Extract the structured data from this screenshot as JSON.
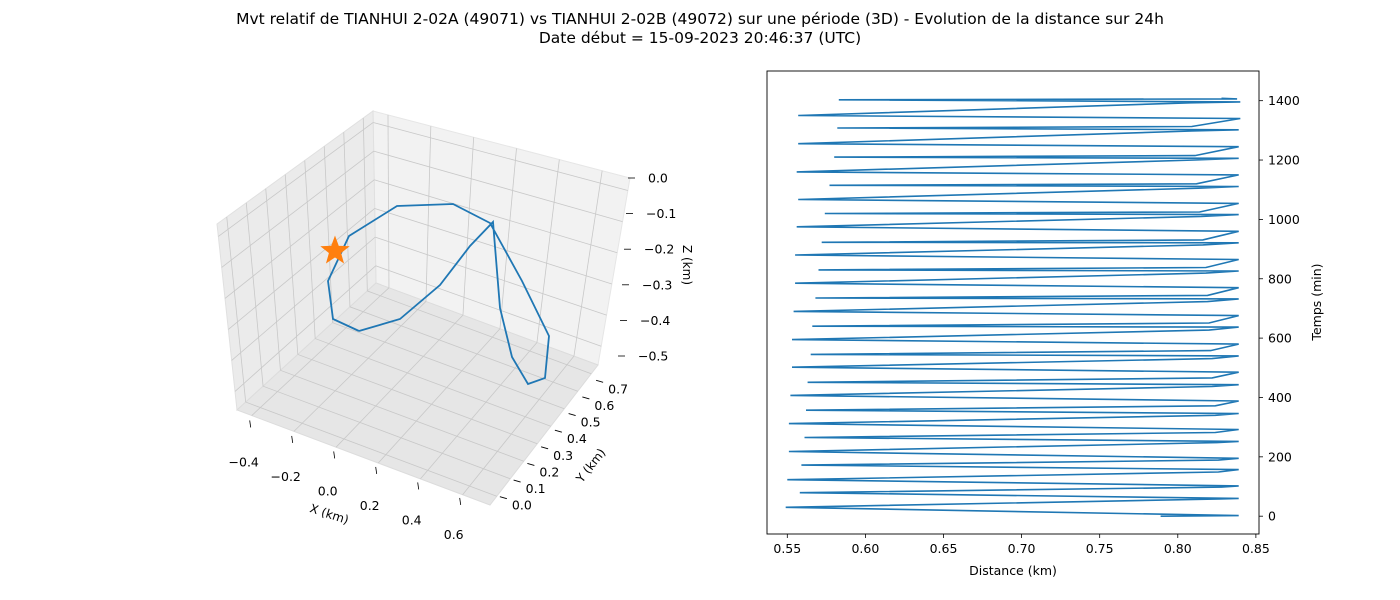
{
  "figure": {
    "title_line1": "Mvt relatif de TIANHUI 2-02A (49071) vs TIANHUI 2-02B (49072) sur une période (3D) - Evolution de la distance sur 24h",
    "title_line2": "Date début = 15-09-2023 20:46:37 (UTC)"
  },
  "chart_data": [
    {
      "type": "line3d",
      "xlabel": "X (km)",
      "ylabel": "Y (km)",
      "zlabel": "Z (km)",
      "xlim": [
        -0.5,
        0.65
      ],
      "ylim": [
        0.0,
        0.7
      ],
      "zlim": [
        -0.5,
        0.0
      ],
      "x_ticks": [
        "−0.4",
        "−0.2",
        "0.0",
        "0.2",
        "0.4",
        "0.6"
      ],
      "y_ticks": [
        "0.0",
        "0.1",
        "0.2",
        "0.3",
        "0.4",
        "0.5",
        "0.6",
        "0.7"
      ],
      "z_ticks": [
        "0.0",
        "−0.1",
        "−0.2",
        "−0.3",
        "−0.4",
        "−0.5"
      ],
      "grid": true,
      "line_color": "#1f77b4",
      "marker_color": "#ff7f0e",
      "marker_symbol": "star",
      "series_note_trajectory": [
        [
          -0.12,
          0.1,
          -0.4
        ],
        [
          -0.4,
          0.2,
          -0.42
        ],
        [
          -0.45,
          0.3,
          -0.35
        ],
        [
          -0.42,
          0.4,
          -0.2
        ],
        [
          -0.35,
          0.5,
          -0.12
        ],
        [
          -0.15,
          0.62,
          -0.08
        ],
        [
          0.05,
          0.68,
          -0.12
        ],
        [
          0.2,
          0.62,
          -0.2
        ],
        [
          0.32,
          0.5,
          -0.3
        ],
        [
          0.38,
          0.35,
          -0.42
        ],
        [
          0.36,
          0.2,
          -0.48
        ],
        [
          0.3,
          0.12,
          -0.5
        ],
        [
          0.24,
          0.2,
          -0.46
        ],
        [
          0.18,
          0.4,
          -0.35
        ],
        [
          0.14,
          0.6,
          -0.2
        ],
        [
          0.12,
          0.7,
          -0.15
        ],
        [
          0.05,
          0.55,
          -0.25
        ],
        [
          -0.02,
          0.35,
          -0.38
        ],
        [
          -0.08,
          0.18,
          -0.42
        ]
      ],
      "marker_point": [
        -0.42,
        0.42,
        -0.22
      ]
    },
    {
      "type": "line",
      "xlabel": "Distance (km)",
      "ylabel": "Temps (min)",
      "xlim": [
        0.537,
        0.852
      ],
      "ylim": [
        -60,
        1500
      ],
      "x_ticks": [
        0.55,
        0.6,
        0.65,
        0.7,
        0.75,
        0.8,
        0.85
      ],
      "x_tick_labels": [
        "0.55",
        "0.60",
        "0.65",
        "0.70",
        "0.75",
        "0.80",
        "0.85"
      ],
      "y_ticks": [
        0,
        200,
        400,
        600,
        800,
        1000,
        1200,
        1400
      ],
      "y_tick_labels": [
        "0",
        "200",
        "400",
        "600",
        "800",
        "1000",
        "1200",
        "1400"
      ],
      "y_axis_side": "right",
      "line_color": "#1f77b4",
      "points": [
        [
          0.789,
          0
        ],
        [
          0.839,
          2
        ],
        [
          0.549,
          30
        ],
        [
          0.827,
          58
        ],
        [
          0.839,
          60
        ],
        [
          0.558,
          79
        ],
        [
          0.828,
          98
        ],
        [
          0.839,
          102
        ],
        [
          0.55,
          123
        ],
        [
          0.826,
          149
        ],
        [
          0.839,
          157
        ],
        [
          0.559,
          172
        ],
        [
          0.826,
          189
        ],
        [
          0.839,
          195
        ],
        [
          0.551,
          218
        ],
        [
          0.825,
          248
        ],
        [
          0.839,
          252
        ],
        [
          0.561,
          265
        ],
        [
          0.824,
          282
        ],
        [
          0.839,
          292
        ],
        [
          0.551,
          312
        ],
        [
          0.824,
          340
        ],
        [
          0.839,
          346
        ],
        [
          0.562,
          357
        ],
        [
          0.824,
          372
        ],
        [
          0.839,
          388
        ],
        [
          0.552,
          407
        ],
        [
          0.822,
          437
        ],
        [
          0.839,
          443
        ],
        [
          0.563,
          451
        ],
        [
          0.822,
          466
        ],
        [
          0.839,
          485
        ],
        [
          0.553,
          502
        ],
        [
          0.822,
          531
        ],
        [
          0.839,
          540
        ],
        [
          0.565,
          545
        ],
        [
          0.821,
          558
        ],
        [
          0.839,
          580
        ],
        [
          0.553,
          595
        ],
        [
          0.82,
          627
        ],
        [
          0.839,
          637
        ],
        [
          0.566,
          640
        ],
        [
          0.82,
          651
        ],
        [
          0.839,
          676
        ],
        [
          0.554,
          690
        ],
        [
          0.819,
          723
        ],
        [
          0.839,
          732
        ],
        [
          0.568,
          735
        ],
        [
          0.819,
          744
        ],
        [
          0.839,
          770
        ],
        [
          0.555,
          785
        ],
        [
          0.818,
          819
        ],
        [
          0.839,
          826
        ],
        [
          0.57,
          830
        ],
        [
          0.818,
          838
        ],
        [
          0.839,
          865
        ],
        [
          0.555,
          880
        ],
        [
          0.816,
          914
        ],
        [
          0.839,
          921
        ],
        [
          0.572,
          923
        ],
        [
          0.816,
          931
        ],
        [
          0.839,
          960
        ],
        [
          0.556,
          975
        ],
        [
          0.815,
          1010
        ],
        [
          0.839,
          1016
        ],
        [
          0.574,
          1020
        ],
        [
          0.814,
          1025
        ],
        [
          0.839,
          1054
        ],
        [
          0.557,
          1067
        ],
        [
          0.813,
          1105
        ],
        [
          0.839,
          1111
        ],
        [
          0.577,
          1115
        ],
        [
          0.812,
          1120
        ],
        [
          0.839,
          1150
        ],
        [
          0.556,
          1160
        ],
        [
          0.811,
          1200
        ],
        [
          0.839,
          1206
        ],
        [
          0.58,
          1210
        ],
        [
          0.811,
          1215
        ],
        [
          0.839,
          1245
        ],
        [
          0.557,
          1255
        ],
        [
          0.809,
          1298
        ],
        [
          0.839,
          1302
        ],
        [
          0.582,
          1308
        ],
        [
          0.809,
          1313
        ],
        [
          0.84,
          1340
        ],
        [
          0.557,
          1350
        ],
        [
          0.808,
          1393
        ],
        [
          0.84,
          1396
        ],
        [
          0.583,
          1403
        ],
        [
          0.838,
          1406
        ],
        [
          0.828,
          1408
        ]
      ]
    }
  ]
}
